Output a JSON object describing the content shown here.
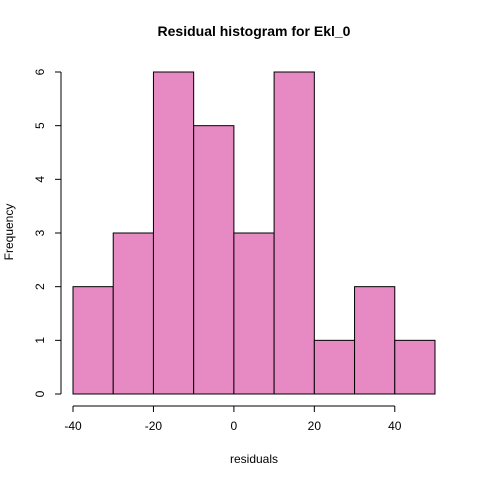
{
  "chart_data": {
    "type": "bar",
    "title": "Residual histogram for Ekl_0",
    "xlabel": "residuals",
    "ylabel": "Frequency",
    "bins": [
      {
        "x0": -40,
        "x1": -30,
        "count": 2
      },
      {
        "x0": -30,
        "x1": -20,
        "count": 3
      },
      {
        "x0": -20,
        "x1": -10,
        "count": 6
      },
      {
        "x0": -10,
        "x1": 0,
        "count": 5
      },
      {
        "x0": 0,
        "x1": 10,
        "count": 3
      },
      {
        "x0": 10,
        "x1": 20,
        "count": 6
      },
      {
        "x0": 20,
        "x1": 30,
        "count": 1
      },
      {
        "x0": 30,
        "x1": 40,
        "count": 2
      },
      {
        "x0": 40,
        "x1": 50,
        "count": 1
      }
    ],
    "xticks": [
      -40,
      -20,
      0,
      20,
      40
    ],
    "yticks": [
      0,
      1,
      2,
      3,
      4,
      5,
      6
    ],
    "xlim": [
      -40,
      50
    ],
    "ylim": [
      0,
      6
    ],
    "bar_color": "#e78ac3",
    "edge_color": "#000000",
    "grid": false,
    "legend": "none"
  }
}
